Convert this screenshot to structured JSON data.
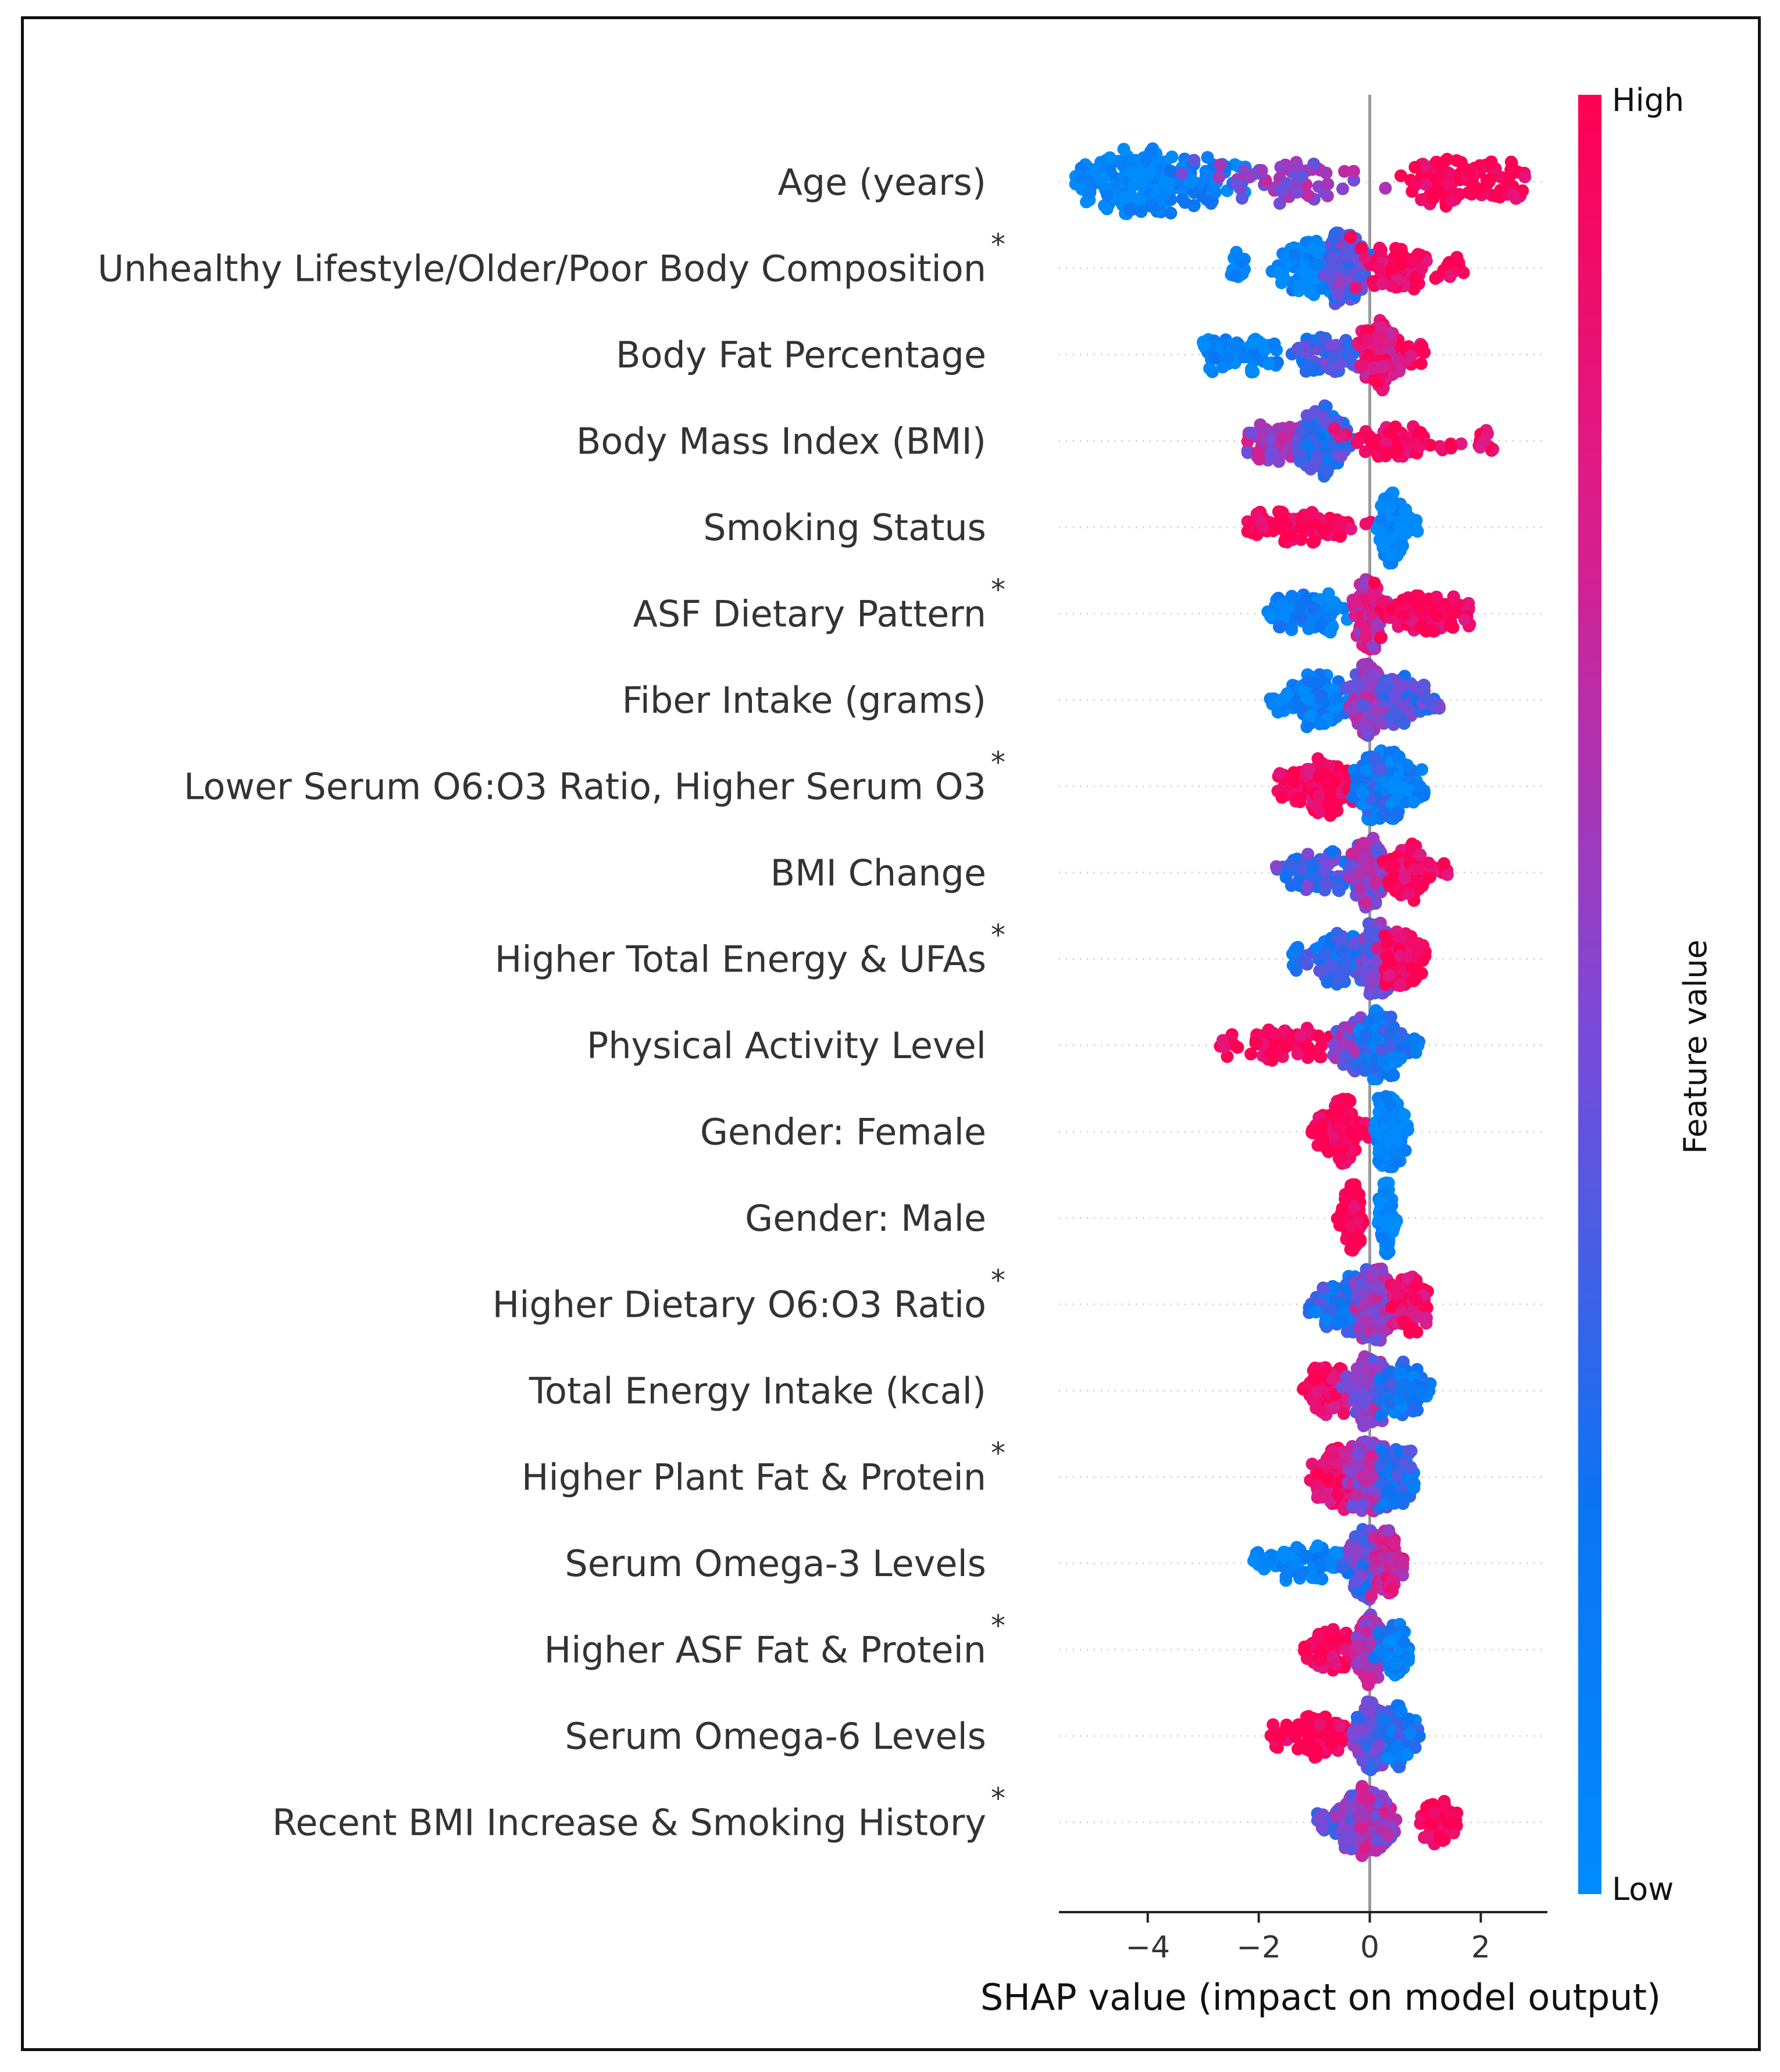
{
  "chart_data": {
    "type": "scatter",
    "subtype": "shap-beeswarm-summary",
    "title": "",
    "xlabel": "SHAP value (impact on model output)",
    "ylabel": "",
    "xlim": [
      -5.6,
      3.2
    ],
    "xticks": [
      -4,
      -2,
      0,
      2
    ],
    "xtick_labels": [
      "−4",
      "−2",
      "0",
      "2"
    ],
    "zero_line": 0,
    "legend_position": "right",
    "colorbar": {
      "title": "Feature value",
      "high_label": "High",
      "low_label": "Low",
      "high_color": "#ff0052",
      "low_color": "#008bfb"
    },
    "features": [
      {
        "name": "Age (years)",
        "starred": false,
        "min": -5.3,
        "max": 2.8,
        "blobs": [
          [
            -4.2,
            0.75,
            1.0,
            0.0
          ],
          [
            -3.1,
            0.8,
            0.5,
            0.1
          ],
          [
            -1.5,
            1.2,
            0.4,
            0.55
          ],
          [
            1.6,
            0.8,
            0.7,
            1.0
          ]
        ]
      },
      {
        "name": "Unhealthy Lifestyle/Older/Poor Body Composition",
        "starred": true,
        "min": -2.6,
        "max": 1.7,
        "blobs": [
          [
            -1.1,
            0.6,
            1.0,
            0.05
          ],
          [
            -0.4,
            0.3,
            0.8,
            0.4
          ],
          [
            0.5,
            0.6,
            0.6,
            0.95
          ]
        ]
      },
      {
        "name": "Body Fat Percentage",
        "starred": false,
        "min": -3.0,
        "max": 1.0,
        "blobs": [
          [
            -2.3,
            0.7,
            0.45,
            0.05
          ],
          [
            -0.8,
            0.5,
            0.6,
            0.35
          ],
          [
            0.2,
            0.35,
            1.0,
            0.85
          ]
        ]
      },
      {
        "name": "Body Mass Index (BMI)",
        "starred": false,
        "min": -2.2,
        "max": 2.3,
        "blobs": [
          [
            -1.6,
            0.5,
            0.4,
            0.6
          ],
          [
            -0.8,
            0.35,
            1.0,
            0.3
          ],
          [
            0.5,
            0.8,
            0.5,
            0.95
          ]
        ]
      },
      {
        "name": "Smoking Status",
        "starred": false,
        "min": -2.2,
        "max": 0.9,
        "blobs": [
          [
            -1.2,
            0.8,
            0.6,
            1.0
          ],
          [
            0.4,
            0.18,
            1.0,
            0.0
          ]
        ]
      },
      {
        "name": "ASF Dietary Pattern",
        "starred": true,
        "min": -1.9,
        "max": 1.8,
        "blobs": [
          [
            -1.1,
            0.5,
            0.6,
            0.1
          ],
          [
            0.0,
            0.25,
            1.0,
            0.7
          ],
          [
            0.9,
            0.6,
            0.7,
            0.95
          ]
        ]
      },
      {
        "name": "Fiber Intake (grams)",
        "starred": false,
        "min": -1.8,
        "max": 1.3,
        "blobs": [
          [
            -0.9,
            0.5,
            0.8,
            0.1
          ],
          [
            0.0,
            0.3,
            1.0,
            0.55
          ],
          [
            0.6,
            0.3,
            0.5,
            0.4
          ]
        ]
      },
      {
        "name": "Lower Serum O6:O3 Ratio, Higher Serum O3",
        "starred": true,
        "min": -1.7,
        "max": 1.0,
        "blobs": [
          [
            -0.8,
            0.45,
            0.9,
            0.95
          ],
          [
            0.15,
            0.3,
            1.0,
            0.2
          ],
          [
            0.6,
            0.25,
            0.4,
            0.1
          ]
        ]
      },
      {
        "name": "BMI Change",
        "starred": false,
        "min": -1.7,
        "max": 1.4,
        "blobs": [
          [
            -0.8,
            0.5,
            0.5,
            0.35
          ],
          [
            0.0,
            0.25,
            1.0,
            0.55
          ],
          [
            0.7,
            0.35,
            0.6,
            0.95
          ]
        ]
      },
      {
        "name": "Higher Total Energy & UFAs",
        "starred": true,
        "min": -1.4,
        "max": 1.0,
        "blobs": [
          [
            -0.5,
            0.4,
            0.8,
            0.25
          ],
          [
            0.1,
            0.25,
            1.0,
            0.45
          ],
          [
            0.6,
            0.3,
            0.6,
            0.95
          ]
        ]
      },
      {
        "name": "Physical Activity Level",
        "starred": false,
        "min": -2.7,
        "max": 0.9,
        "blobs": [
          [
            -1.5,
            0.7,
            0.5,
            1.0
          ],
          [
            -0.3,
            0.3,
            0.6,
            0.5
          ],
          [
            0.2,
            0.3,
            1.0,
            0.2
          ]
        ]
      },
      {
        "name": "Gender: Female",
        "starred": false,
        "min": -1.1,
        "max": 0.7,
        "blobs": [
          [
            -0.5,
            0.3,
            1.0,
            1.0
          ],
          [
            0.35,
            0.2,
            1.0,
            0.0
          ]
        ]
      },
      {
        "name": "Gender: Male",
        "starred": false,
        "min": -0.6,
        "max": 0.5,
        "blobs": [
          [
            -0.3,
            0.12,
            1.0,
            1.0
          ],
          [
            0.3,
            0.1,
            0.8,
            0.0
          ]
        ]
      },
      {
        "name": "Higher Dietary O6:O3 Ratio",
        "starred": true,
        "min": -1.1,
        "max": 1.1,
        "blobs": [
          [
            -0.4,
            0.35,
            0.8,
            0.25
          ],
          [
            0.1,
            0.3,
            1.0,
            0.55
          ],
          [
            0.7,
            0.3,
            0.6,
            0.9
          ]
        ]
      },
      {
        "name": "Total Energy Intake (kcal)",
        "starred": false,
        "min": -1.2,
        "max": 1.1,
        "blobs": [
          [
            -0.7,
            0.35,
            0.6,
            0.9
          ],
          [
            0.0,
            0.3,
            1.0,
            0.55
          ],
          [
            0.6,
            0.3,
            0.6,
            0.2
          ]
        ]
      },
      {
        "name": "Higher Plant Fat & Protein",
        "starred": true,
        "min": -1.1,
        "max": 0.8,
        "blobs": [
          [
            -0.6,
            0.3,
            0.7,
            0.9
          ],
          [
            0.0,
            0.3,
            1.0,
            0.6
          ],
          [
            0.5,
            0.25,
            0.6,
            0.25
          ]
        ]
      },
      {
        "name": "Serum Omega-3 Levels",
        "starred": false,
        "min": -2.1,
        "max": 0.6,
        "blobs": [
          [
            -1.1,
            0.6,
            0.45,
            0.05
          ],
          [
            -0.1,
            0.25,
            1.0,
            0.4
          ],
          [
            0.3,
            0.2,
            0.6,
            0.7
          ]
        ]
      },
      {
        "name": "Higher ASF Fat & Protein",
        "starred": true,
        "min": -1.2,
        "max": 0.7,
        "blobs": [
          [
            -0.6,
            0.35,
            0.6,
            0.95
          ],
          [
            0.0,
            0.2,
            1.0,
            0.6
          ],
          [
            0.45,
            0.2,
            0.5,
            0.15
          ]
        ]
      },
      {
        "name": "Serum Omega-6 Levels",
        "starred": false,
        "min": -1.8,
        "max": 0.9,
        "blobs": [
          [
            -0.9,
            0.45,
            0.6,
            1.0
          ],
          [
            0.05,
            0.25,
            1.0,
            0.45
          ],
          [
            0.5,
            0.2,
            0.5,
            0.2
          ]
        ]
      },
      {
        "name": "Recent BMI Increase & Smoking History",
        "starred": true,
        "min": -1.0,
        "max": 1.6,
        "blobs": [
          [
            -0.3,
            0.3,
            0.8,
            0.45
          ],
          [
            0.1,
            0.25,
            1.0,
            0.6
          ],
          [
            1.2,
            0.25,
            0.4,
            1.0
          ]
        ]
      }
    ]
  }
}
